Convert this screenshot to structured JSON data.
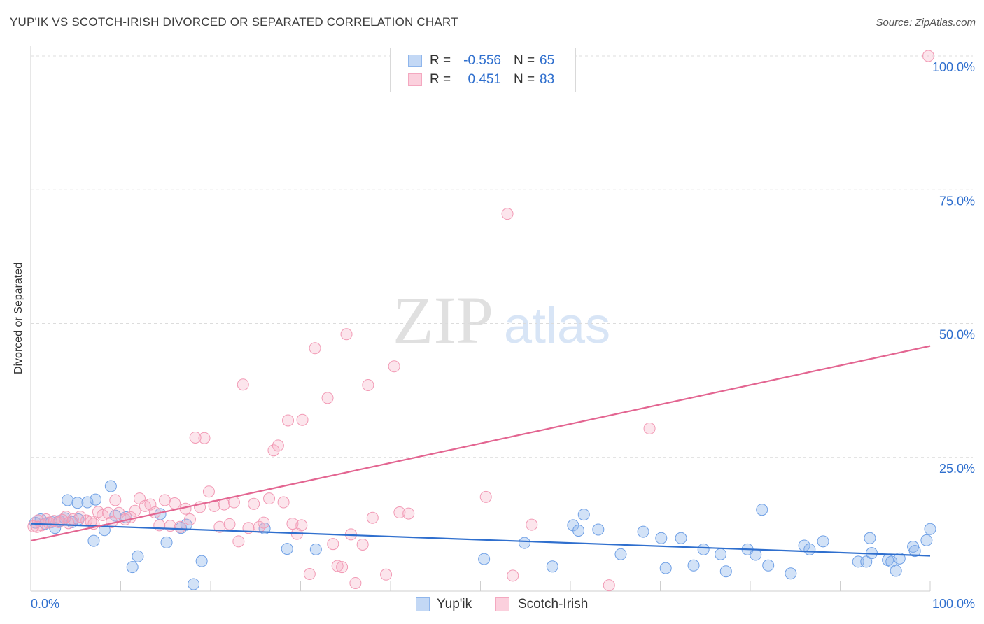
{
  "header": {
    "title": "YUP'IK VS SCOTCH-IRISH DIVORCED OR SEPARATED CORRELATION CHART",
    "source": "Source: ZipAtlas.com"
  },
  "watermark": {
    "zip": "ZIP",
    "atlas": "atlas"
  },
  "legend_top": {
    "rows": [
      {
        "r_label": "R =",
        "r_value": "-0.556",
        "n_label": "N =",
        "n_value": "65",
        "color": "#8fb6ec"
      },
      {
        "r_label": "R =",
        "r_value": "0.451",
        "n_label": "N =",
        "n_value": "83",
        "color": "#f4a8c0"
      }
    ]
  },
  "chart_data": {
    "type": "scatter",
    "title": "YUP'IK VS SCOTCH-IRISH DIVORCED OR SEPARATED CORRELATION CHART",
    "xlabel": "",
    "ylabel": "Divorced or Separated",
    "xlim": [
      0,
      100
    ],
    "ylim": [
      0,
      100
    ],
    "x_tick_labels": [
      "0.0%",
      "100.0%"
    ],
    "y_tick_labels": [
      "25.0%",
      "50.0%",
      "75.0%",
      "100.0%"
    ],
    "y_ticks": [
      25,
      50,
      75,
      100
    ],
    "grid": true,
    "legend_position": "bottom-center",
    "series": [
      {
        "name": "Yup'ik",
        "color": "#6fa0e6",
        "line_color": "#2f6fce",
        "trend": {
          "x": [
            0,
            100
          ],
          "y": [
            12.6,
            6.6
          ]
        },
        "points": [
          [
            0.5,
            12.8
          ],
          [
            1.1,
            13.4
          ],
          [
            1.6,
            12.6
          ],
          [
            2.3,
            12.9
          ],
          [
            2.7,
            11.8
          ],
          [
            3.2,
            13.1
          ],
          [
            3.8,
            13.6
          ],
          [
            4.1,
            17.0
          ],
          [
            4.6,
            12.9
          ],
          [
            5.3,
            13.4
          ],
          [
            5.2,
            16.5
          ],
          [
            6.3,
            16.6
          ],
          [
            7.2,
            17.1
          ],
          [
            7.0,
            9.4
          ],
          [
            8.2,
            11.4
          ],
          [
            8.9,
            19.6
          ],
          [
            9.4,
            14.1
          ],
          [
            10.6,
            13.8
          ],
          [
            11.3,
            4.5
          ],
          [
            11.9,
            6.5
          ],
          [
            14.4,
            14.4
          ],
          [
            15.1,
            9.1
          ],
          [
            16.7,
            11.8
          ],
          [
            17.3,
            12.4
          ],
          [
            18.1,
            1.3
          ],
          [
            19.0,
            5.6
          ],
          [
            26.0,
            11.7
          ],
          [
            28.5,
            7.9
          ],
          [
            31.7,
            7.8
          ],
          [
            50.4,
            6.0
          ],
          [
            54.9,
            9.0
          ],
          [
            58.0,
            4.6
          ],
          [
            60.3,
            12.3
          ],
          [
            60.9,
            11.3
          ],
          [
            61.5,
            14.3
          ],
          [
            63.1,
            11.5
          ],
          [
            65.6,
            6.9
          ],
          [
            68.1,
            11.1
          ],
          [
            70.1,
            9.9
          ],
          [
            70.6,
            4.3
          ],
          [
            72.3,
            9.9
          ],
          [
            73.7,
            4.8
          ],
          [
            74.8,
            7.8
          ],
          [
            76.7,
            6.9
          ],
          [
            77.3,
            3.7
          ],
          [
            79.7,
            7.8
          ],
          [
            80.6,
            6.8
          ],
          [
            81.3,
            15.2
          ],
          [
            82.0,
            4.8
          ],
          [
            84.5,
            3.3
          ],
          [
            86.0,
            8.5
          ],
          [
            86.6,
            7.8
          ],
          [
            88.1,
            9.3
          ],
          [
            92.0,
            5.5
          ],
          [
            92.9,
            5.5
          ],
          [
            93.3,
            9.9
          ],
          [
            93.5,
            7.1
          ],
          [
            95.3,
            5.8
          ],
          [
            95.7,
            5.5
          ],
          [
            96.2,
            3.8
          ],
          [
            96.6,
            6.1
          ],
          [
            98.1,
            8.3
          ],
          [
            98.3,
            7.5
          ],
          [
            99.6,
            9.5
          ],
          [
            100.0,
            11.6
          ]
        ]
      },
      {
        "name": "Scotch-Irish",
        "color": "#f29ab5",
        "line_color": "#e36591",
        "trend": {
          "x": [
            0,
            100
          ],
          "y": [
            9.4,
            45.8
          ]
        },
        "points": [
          [
            0.3,
            12.1
          ],
          [
            0.8,
            13.2
          ],
          [
            1.2,
            12.3
          ],
          [
            1.7,
            13.4
          ],
          [
            2.0,
            12.8
          ],
          [
            2.6,
            13.1
          ],
          [
            3.1,
            12.9
          ],
          [
            3.9,
            13.9
          ],
          [
            4.2,
            12.7
          ],
          [
            4.7,
            13.4
          ],
          [
            5.5,
            13.9
          ],
          [
            6.2,
            13.2
          ],
          [
            7.0,
            12.6
          ],
          [
            7.5,
            14.8
          ],
          [
            8.0,
            14.2
          ],
          [
            8.6,
            14.6
          ],
          [
            9.0,
            12.9
          ],
          [
            9.4,
            17.0
          ],
          [
            9.8,
            14.6
          ],
          [
            10.5,
            13.4
          ],
          [
            11.1,
            13.8
          ],
          [
            11.6,
            15.0
          ],
          [
            12.1,
            17.3
          ],
          [
            12.7,
            15.9
          ],
          [
            13.3,
            16.2
          ],
          [
            13.8,
            14.7
          ],
          [
            14.3,
            12.3
          ],
          [
            14.9,
            17.0
          ],
          [
            15.5,
            12.2
          ],
          [
            16.0,
            16.4
          ],
          [
            16.6,
            12.0
          ],
          [
            17.2,
            15.4
          ],
          [
            17.7,
            13.4
          ],
          [
            18.3,
            28.7
          ],
          [
            18.8,
            15.7
          ],
          [
            19.3,
            28.6
          ],
          [
            19.8,
            18.6
          ],
          [
            20.4,
            15.9
          ],
          [
            21.0,
            12.0
          ],
          [
            21.5,
            16.2
          ],
          [
            22.1,
            12.5
          ],
          [
            22.6,
            16.6
          ],
          [
            23.1,
            9.3
          ],
          [
            23.6,
            38.6
          ],
          [
            24.2,
            11.8
          ],
          [
            24.8,
            16.3
          ],
          [
            25.4,
            12.0
          ],
          [
            25.9,
            12.8
          ],
          [
            26.5,
            17.3
          ],
          [
            27.0,
            26.3
          ],
          [
            27.5,
            27.2
          ],
          [
            28.1,
            16.6
          ],
          [
            28.6,
            31.9
          ],
          [
            29.1,
            12.6
          ],
          [
            29.6,
            10.7
          ],
          [
            30.2,
            32.0
          ],
          [
            30.1,
            12.3
          ],
          [
            31.0,
            3.2
          ],
          [
            31.6,
            45.4
          ],
          [
            33.0,
            36.1
          ],
          [
            33.6,
            8.8
          ],
          [
            34.1,
            4.7
          ],
          [
            34.6,
            4.5
          ],
          [
            35.1,
            48.0
          ],
          [
            35.6,
            10.6
          ],
          [
            36.1,
            1.5
          ],
          [
            36.9,
            8.7
          ],
          [
            37.5,
            38.5
          ],
          [
            38.0,
            13.7
          ],
          [
            39.5,
            3.1
          ],
          [
            40.4,
            42.0
          ],
          [
            41.0,
            14.7
          ],
          [
            42.0,
            14.5
          ],
          [
            50.6,
            17.6
          ],
          [
            53.0,
            70.5
          ],
          [
            53.6,
            2.9
          ],
          [
            55.7,
            12.4
          ],
          [
            68.8,
            30.4
          ],
          [
            64.3,
            1.1
          ],
          [
            99.8,
            100.0
          ],
          [
            0.7,
            12.0
          ],
          [
            3.5,
            13.3
          ],
          [
            6.7,
            13.0
          ]
        ]
      }
    ]
  },
  "legend_bottom": [
    {
      "label": "Yup'ik",
      "color": "#8fb6ec"
    },
    {
      "label": "Scotch-Irish",
      "color": "#f4a8c0"
    }
  ]
}
